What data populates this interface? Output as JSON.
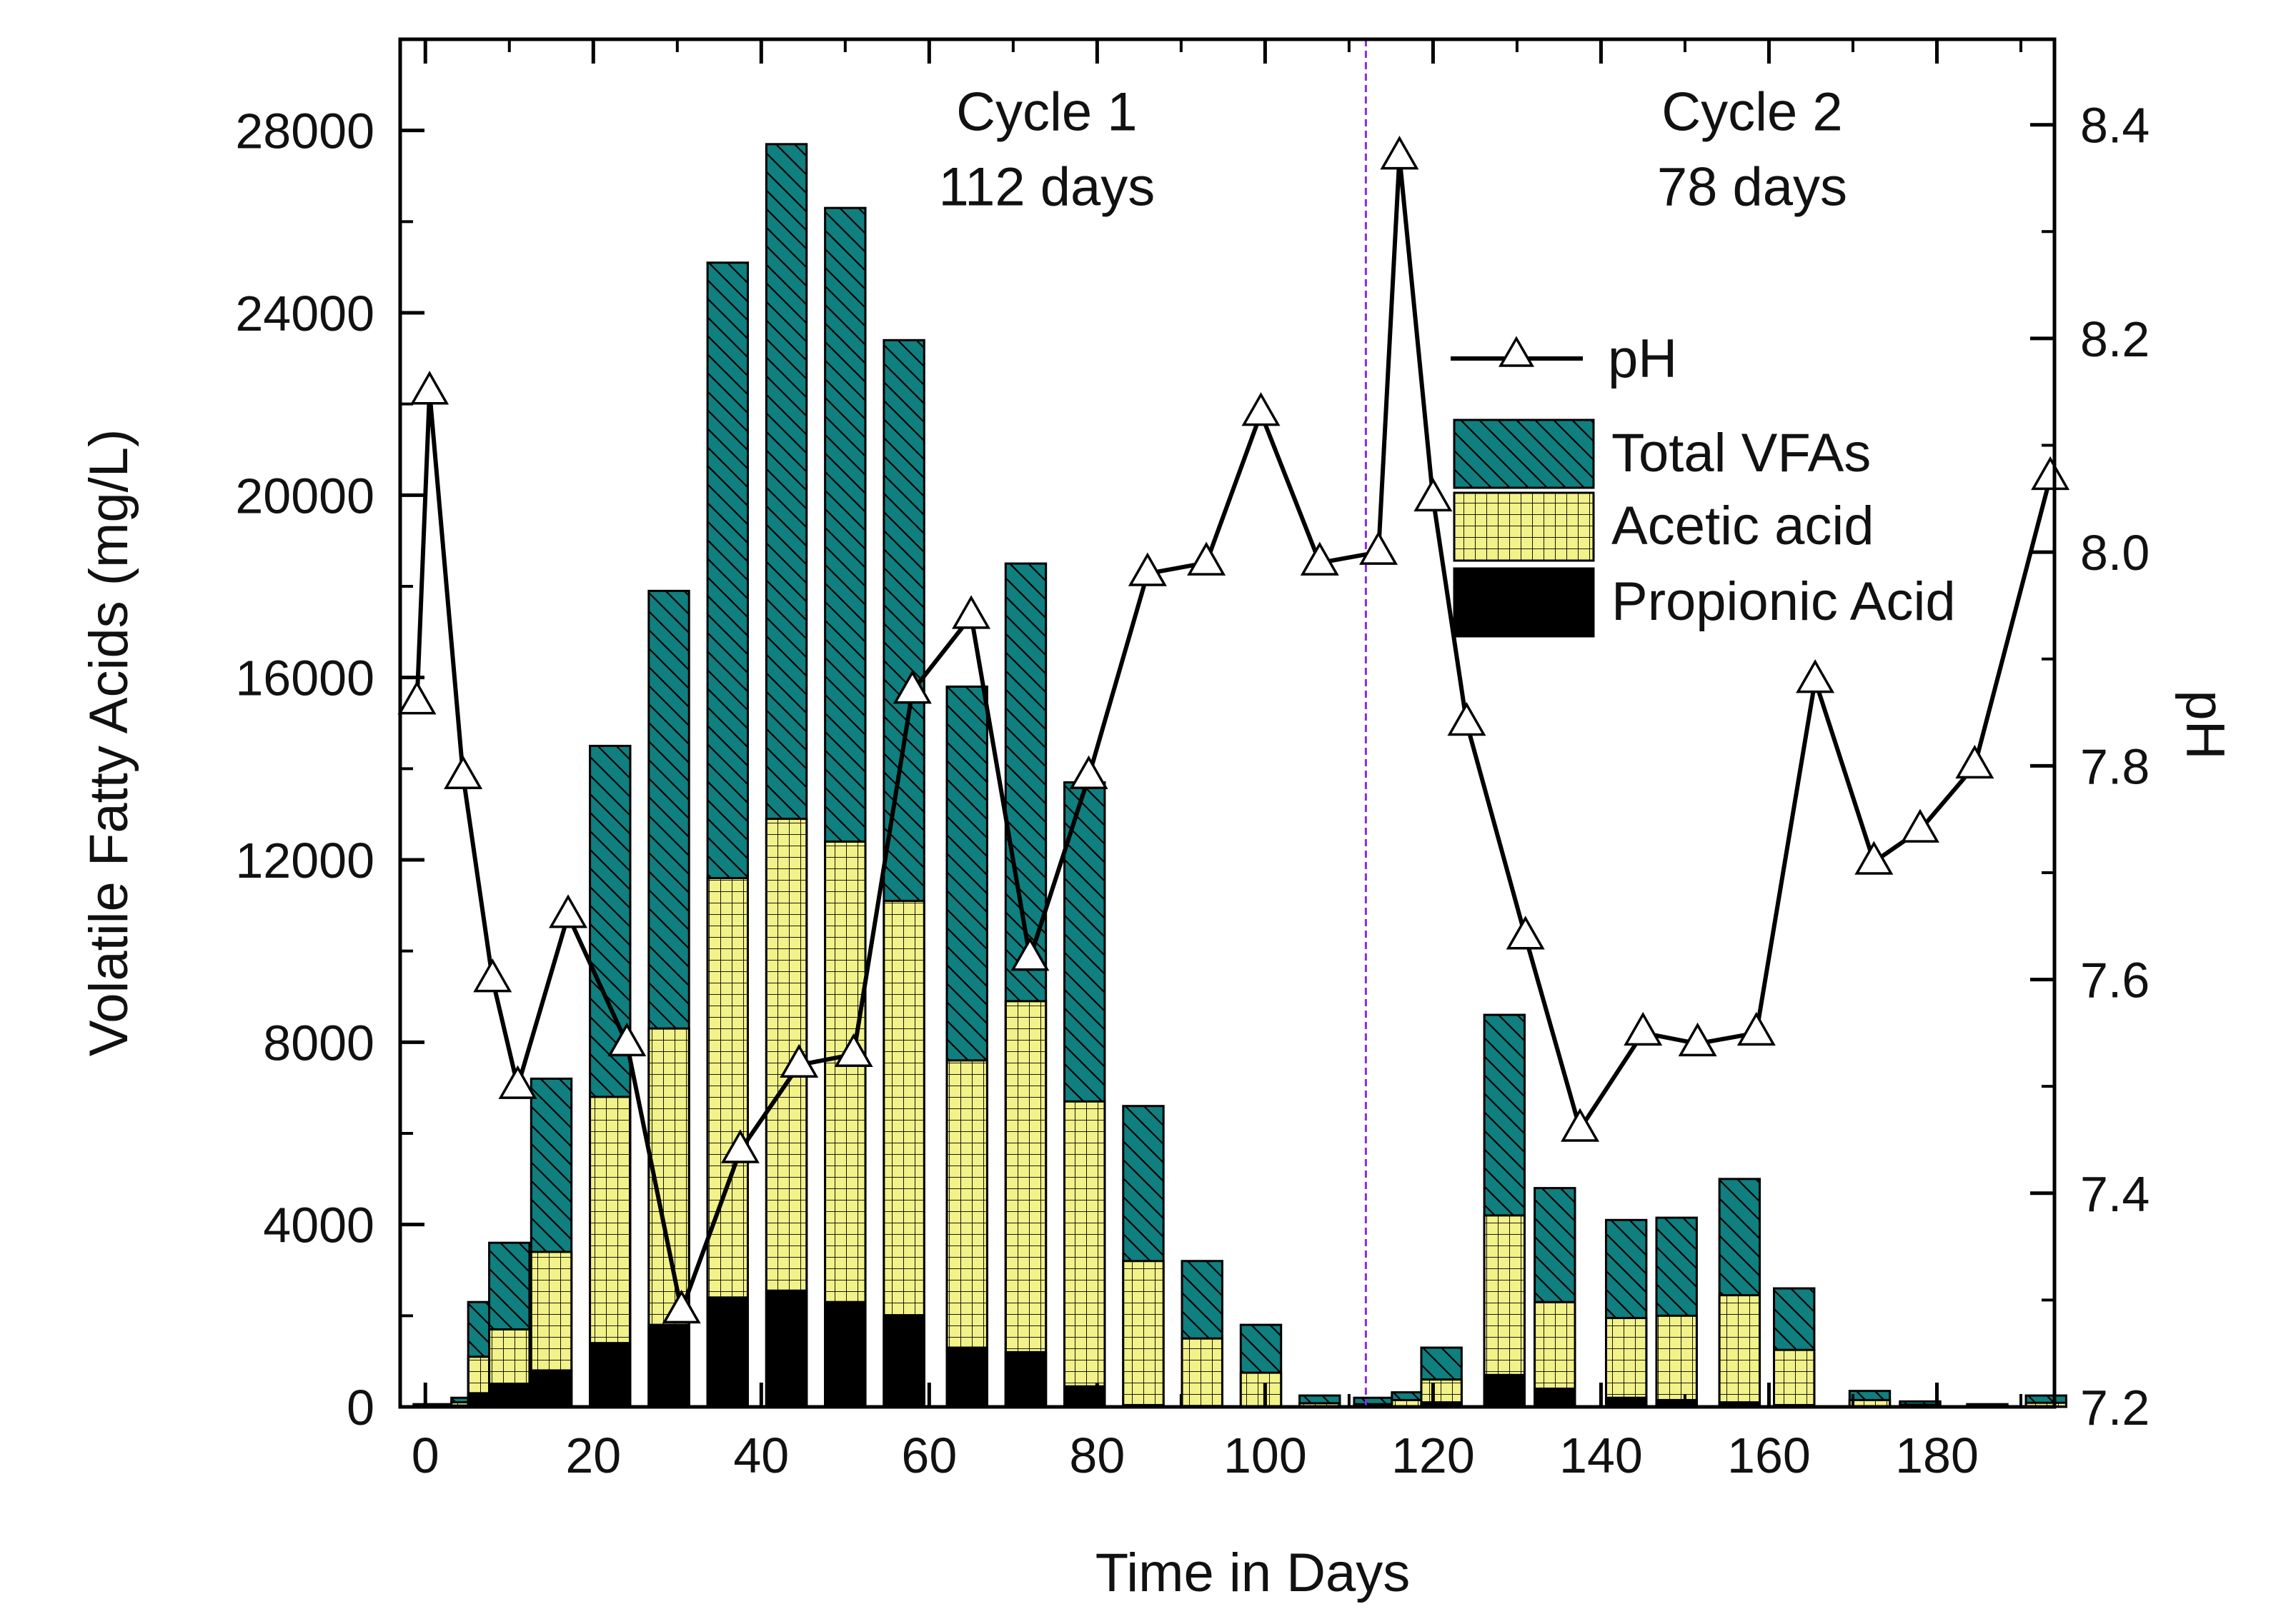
{
  "chart_data": {
    "type": "bar",
    "xlabel": "Time in Days",
    "ylabel_left": "Volatile Fatty Acids (mg/L)",
    "ylabel_right": "pH",
    "xlim": [
      -3,
      194
    ],
    "ylim_left": [
      0,
      30000
    ],
    "ylim_right": [
      7.2,
      8.48
    ],
    "x_ticks": [
      0,
      20,
      40,
      60,
      80,
      100,
      120,
      140,
      160,
      180
    ],
    "y_ticks_left": [
      0,
      4000,
      8000,
      12000,
      16000,
      20000,
      24000,
      28000
    ],
    "y_ticks_right": [
      "7.2",
      "7.4",
      "7.6",
      "7.8",
      "8.0",
      "8.2",
      "8.4"
    ],
    "bar_width_days": 4.8,
    "cycle_divider_x": 112,
    "annotations": [
      {
        "id": "cycle1",
        "lines": [
          "Cycle 1",
          "112 days"
        ],
        "x": 74,
        "y": 28000
      },
      {
        "id": "cycle2",
        "lines": [
          "Cycle 2",
          "78 days"
        ],
        "x": 158,
        "y": 28000
      }
    ],
    "colors": {
      "total": "#0f7f7f",
      "acetic": "#f2f28a",
      "propionic": "#000000",
      "divider": "#8a2be2",
      "line": "#000000"
    },
    "legend": {
      "position": "top-right",
      "items": [
        {
          "key": "ph",
          "label": "pH"
        },
        {
          "key": "total",
          "label": "Total VFAs"
        },
        {
          "key": "acetic",
          "label": "Acetic acid"
        },
        {
          "key": "propionic",
          "label": "Propionic Acid"
        }
      ]
    },
    "bars": [
      {
        "day": 1,
        "total": 60,
        "acetic": 30,
        "propionic": 10
      },
      {
        "day": 5.5,
        "total": 200,
        "acetic": 100,
        "propionic": 30
      },
      {
        "day": 7.5,
        "total": 2300,
        "acetic": 1100,
        "propionic": 300
      },
      {
        "day": 10,
        "total": 3600,
        "acetic": 1700,
        "propionic": 500
      },
      {
        "day": 15,
        "total": 7200,
        "acetic": 3400,
        "propionic": 800
      },
      {
        "day": 22,
        "total": 14500,
        "acetic": 6800,
        "propionic": 1400
      },
      {
        "day": 29,
        "total": 17900,
        "acetic": 8300,
        "propionic": 1800
      },
      {
        "day": 36,
        "total": 25100,
        "acetic": 11600,
        "propionic": 2400
      },
      {
        "day": 43,
        "total": 27700,
        "acetic": 12900,
        "propionic": 2550
      },
      {
        "day": 50,
        "total": 26300,
        "acetic": 12400,
        "propionic": 2300
      },
      {
        "day": 57,
        "total": 23400,
        "acetic": 11100,
        "propionic": 2000
      },
      {
        "day": 64.5,
        "total": 15800,
        "acetic": 7600,
        "propionic": 1300
      },
      {
        "day": 71.5,
        "total": 18500,
        "acetic": 8900,
        "propionic": 1200
      },
      {
        "day": 78.5,
        "total": 13700,
        "acetic": 6700,
        "propionic": 450
      },
      {
        "day": 85.5,
        "total": 6600,
        "acetic": 3200,
        "propionic": 40
      },
      {
        "day": 92.5,
        "total": 3200,
        "acetic": 1500,
        "propionic": 20
      },
      {
        "day": 99.5,
        "total": 1800,
        "acetic": 750,
        "propionic": 10
      },
      {
        "day": 106.5,
        "total": 250,
        "acetic": 80,
        "propionic": 0
      },
      {
        "day": 113,
        "total": 200,
        "acetic": 60,
        "propionic": 0
      },
      {
        "day": 117.5,
        "total": 320,
        "acetic": 150,
        "propionic": 0
      },
      {
        "day": 121,
        "total": 1300,
        "acetic": 600,
        "propionic": 100
      },
      {
        "day": 128.5,
        "total": 8600,
        "acetic": 4200,
        "propionic": 700
      },
      {
        "day": 134.5,
        "total": 4800,
        "acetic": 2300,
        "propionic": 400
      },
      {
        "day": 143,
        "total": 4100,
        "acetic": 1950,
        "propionic": 200
      },
      {
        "day": 149,
        "total": 4150,
        "acetic": 2000,
        "propionic": 150
      },
      {
        "day": 156.5,
        "total": 5000,
        "acetic": 2450,
        "propionic": 100
      },
      {
        "day": 163,
        "total": 2600,
        "acetic": 1250,
        "propionic": 40
      },
      {
        "day": 172,
        "total": 350,
        "acetic": 150,
        "propionic": 0
      },
      {
        "day": 178,
        "total": 120,
        "acetic": 50,
        "propionic": 0
      },
      {
        "day": 186,
        "total": 60,
        "acetic": 20,
        "propionic": 0
      },
      {
        "day": 193,
        "total": 250,
        "acetic": 90,
        "propionic": 0
      }
    ],
    "ph_series": [
      {
        "day": -1,
        "ph": 7.86
      },
      {
        "day": 0.5,
        "ph": 8.15
      },
      {
        "day": 4.5,
        "ph": 7.79
      },
      {
        "day": 8,
        "ph": 7.6
      },
      {
        "day": 11,
        "ph": 7.5
      },
      {
        "day": 17,
        "ph": 7.66
      },
      {
        "day": 24,
        "ph": 7.54
      },
      {
        "day": 30.5,
        "ph": 7.29
      },
      {
        "day": 37.5,
        "ph": 7.44
      },
      {
        "day": 44.5,
        "ph": 7.52
      },
      {
        "day": 51,
        "ph": 7.53
      },
      {
        "day": 58,
        "ph": 7.87
      },
      {
        "day": 65,
        "ph": 7.94
      },
      {
        "day": 72,
        "ph": 7.62
      },
      {
        "day": 79,
        "ph": 7.79
      },
      {
        "day": 86,
        "ph": 7.98
      },
      {
        "day": 93,
        "ph": 7.99
      },
      {
        "day": 99.5,
        "ph": 8.13
      },
      {
        "day": 106.5,
        "ph": 7.99
      },
      {
        "day": 113.5,
        "ph": 8.0
      },
      {
        "day": 116,
        "ph": 8.37
      },
      {
        "day": 120,
        "ph": 8.05
      },
      {
        "day": 124,
        "ph": 7.84
      },
      {
        "day": 131,
        "ph": 7.64
      },
      {
        "day": 137.5,
        "ph": 7.46
      },
      {
        "day": 145,
        "ph": 7.55
      },
      {
        "day": 151.5,
        "ph": 7.54
      },
      {
        "day": 158.5,
        "ph": 7.55
      },
      {
        "day": 165.5,
        "ph": 7.88
      },
      {
        "day": 172.5,
        "ph": 7.71
      },
      {
        "day": 178,
        "ph": 7.74
      },
      {
        "day": 184.5,
        "ph": 7.8
      },
      {
        "day": 193.5,
        "ph": 8.07
      }
    ]
  }
}
